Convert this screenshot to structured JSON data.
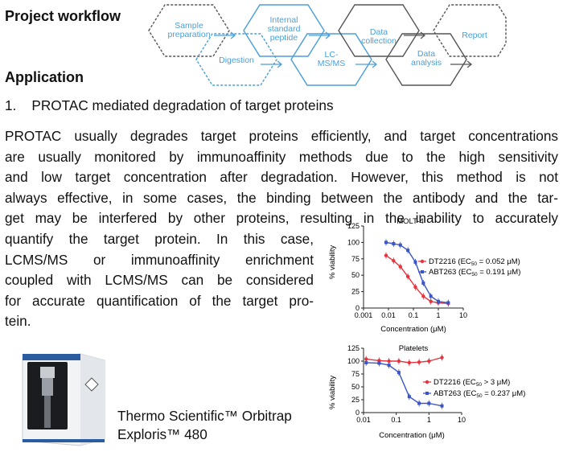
{
  "headings": {
    "workflow": "Project workflow",
    "application": "Application"
  },
  "workflow": {
    "steps": [
      "Sample preparation",
      "Digestion",
      "Internal standard peptide",
      "LC-MS/MS",
      "Data collection",
      "Data analysis",
      "Report"
    ],
    "colors": {
      "blue": "#4a9fd8",
      "dark": "#555555"
    }
  },
  "item1": "1.    PROTAC mediated degradation of target proteins",
  "paragraph": {
    "lines_full": [
      "PROTAC usually degrades target proteins efficiently, and target concentrations",
      "are usually monitored by immunoaffinity methods due to the high sensitivity",
      "and low target concentration after degradation. However, this method is not",
      "always effective, in some cases, the binding between the antibody and the tar-",
      "get may be interfered by other proteins, resulting in the inability to accurately"
    ],
    "lines_left": [
      "quantify the target protein. In this case,",
      "LCMS/MS or immunoaffinity enrichment",
      "coupled with LCMS/MS can be considered",
      "for accurate quantification of the target pro-"
    ],
    "last_line": "tein."
  },
  "instrument": {
    "caption_line1": "Thermo Scientific™ Orbitrap",
    "caption_line2": "Exploris™ 480"
  },
  "chart_data": [
    {
      "type": "scatter",
      "title": "MOLT-4",
      "xlabel": "Concentration (μM)",
      "ylabel": "% viability",
      "xscale": "log",
      "xlim": [
        0.001,
        10
      ],
      "ylim": [
        0,
        125
      ],
      "xticks": [
        "0.001",
        "0.01",
        "0.1",
        "1",
        "10"
      ],
      "yticks": [
        "0",
        "25",
        "50",
        "75",
        "100",
        "125"
      ],
      "legend_position": "top-right",
      "series": [
        {
          "name": "DT2216 (EC50 = 0.052 μM)",
          "color": "#e8323c",
          "x": [
            0.008,
            0.016,
            0.03,
            0.06,
            0.12,
            0.25,
            0.5,
            1,
            2.5
          ],
          "y": [
            80,
            72,
            63,
            48,
            32,
            18,
            10,
            8,
            7
          ]
        },
        {
          "name": "ABT263 (EC50 = 0.191 μM)",
          "color": "#3a55c8",
          "x": [
            0.008,
            0.016,
            0.03,
            0.06,
            0.12,
            0.25,
            0.5,
            1,
            2.5
          ],
          "y": [
            100,
            98,
            96,
            88,
            70,
            38,
            18,
            10,
            8
          ]
        }
      ]
    },
    {
      "type": "scatter",
      "title": "Platelets",
      "xlabel": "Concentration (μM)",
      "ylabel": "% viability",
      "xscale": "log",
      "xlim": [
        0.01,
        10
      ],
      "ylim": [
        0,
        125
      ],
      "xticks": [
        "0.01",
        "0.1",
        "1",
        "10"
      ],
      "yticks": [
        "0",
        "25",
        "50",
        "75",
        "100",
        "125"
      ],
      "legend_position": "bottom-right",
      "series": [
        {
          "name": "DT2216 (EC50 > 3 μM)",
          "color": "#e8323c",
          "x": [
            0.012,
            0.03,
            0.06,
            0.12,
            0.25,
            0.5,
            1,
            2.5
          ],
          "y": [
            104,
            101,
            100,
            100,
            97,
            98,
            100,
            107
          ]
        },
        {
          "name": "ABT263 (EC50 = 0.237 μM)",
          "color": "#3a55c8",
          "x": [
            0.012,
            0.03,
            0.06,
            0.12,
            0.25,
            0.5,
            1,
            2.5
          ],
          "y": [
            97,
            96,
            92,
            78,
            31,
            18,
            18,
            13
          ]
        }
      ]
    }
  ]
}
